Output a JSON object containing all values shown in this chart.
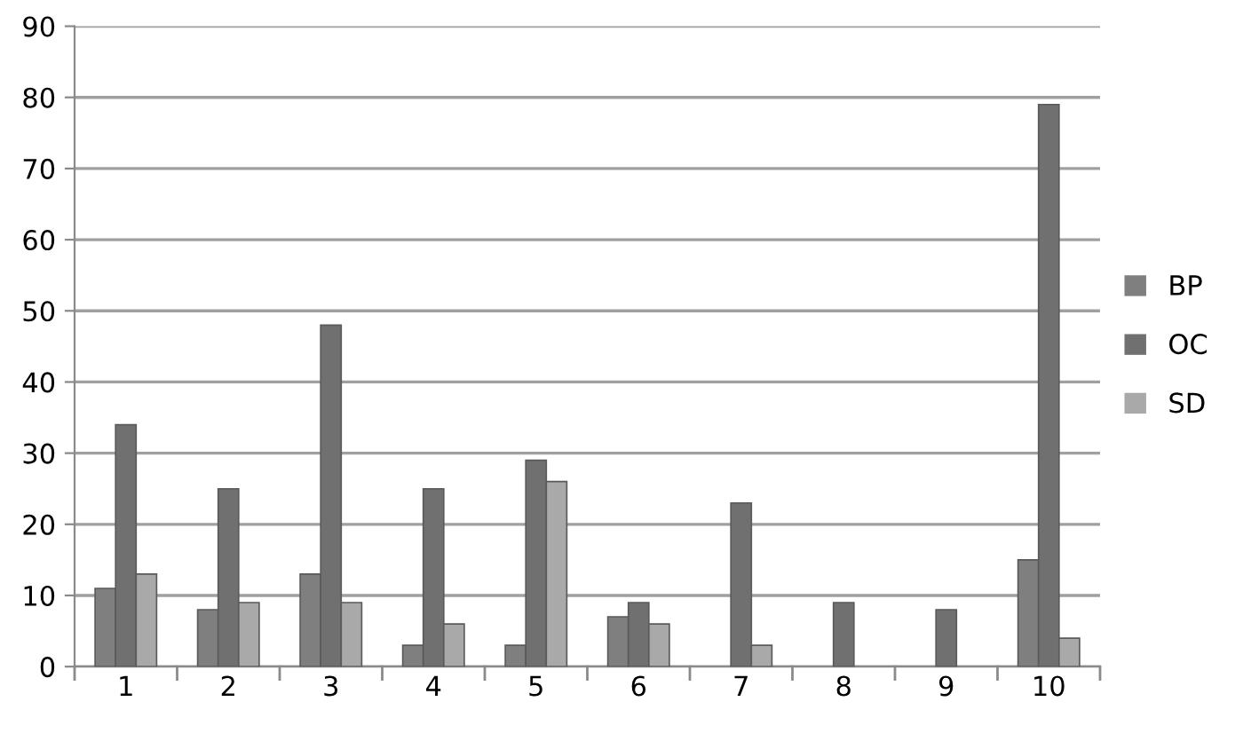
{
  "chart_data": {
    "type": "bar",
    "categories": [
      "1",
      "2",
      "3",
      "4",
      "5",
      "6",
      "7",
      "8",
      "9",
      "10"
    ],
    "series": [
      {
        "name": "BP",
        "color": "#7f7f7f",
        "values": [
          11,
          8,
          13,
          3,
          3,
          7,
          0,
          0,
          0,
          15
        ]
      },
      {
        "name": "OC",
        "color": "#707070",
        "values": [
          34,
          25,
          48,
          25,
          29,
          9,
          23,
          9,
          8,
          79
        ]
      },
      {
        "name": "SD",
        "color": "#a9a9a9",
        "values": [
          13,
          9,
          9,
          6,
          26,
          6,
          3,
          0,
          0,
          4
        ]
      }
    ],
    "ylim": [
      0,
      90
    ],
    "yticks": [
      0,
      10,
      20,
      30,
      40,
      50,
      60,
      70,
      80,
      90
    ],
    "grid": "y",
    "legend": "right"
  }
}
